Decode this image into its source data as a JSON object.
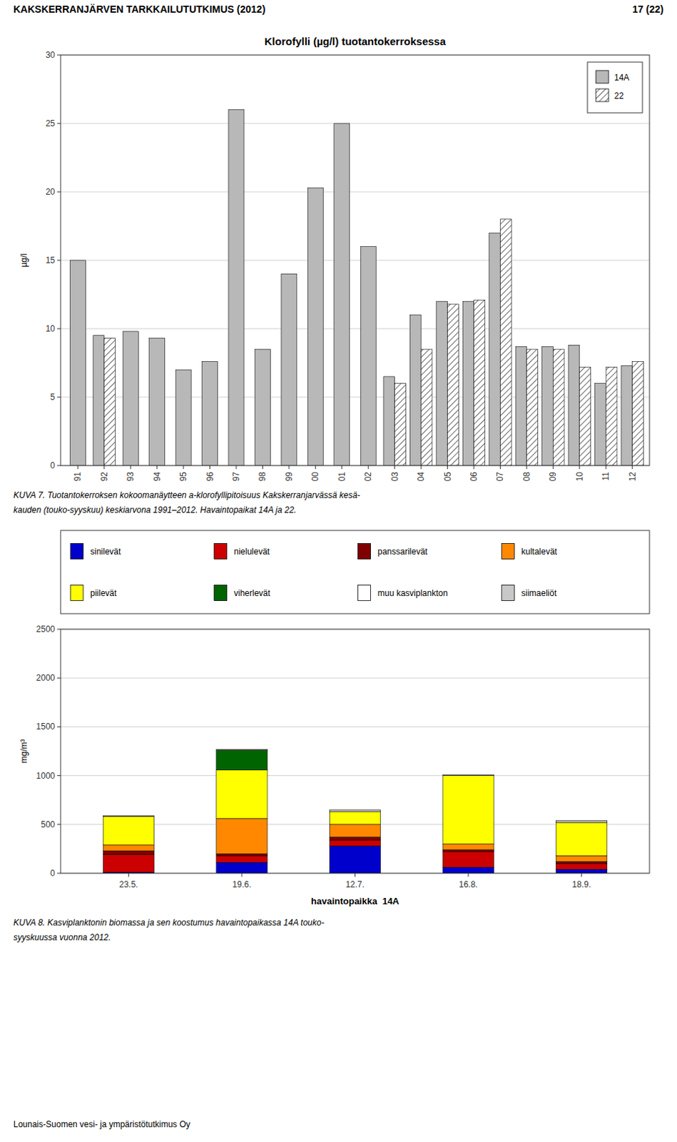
{
  "page_header": "KAKSKERRANJÄRVEN TARKKAILUTUTKIMUS (2012)",
  "page_number": "17 (22)",
  "footer": "Lounais-Suomen vesi- ja ympäristötutkimus Oy",
  "chart_data": [
    {
      "type": "bar",
      "title": "Klorofylli (µg/l) tuotantokerroksessa",
      "y_label": "µg/l",
      "categories": [
        "91",
        "92",
        "93",
        "94",
        "95",
        "96",
        "97",
        "98",
        "99",
        "00",
        "01",
        "02",
        "03",
        "04",
        "05",
        "06",
        "07",
        "08",
        "09",
        "10",
        "11",
        "12"
      ],
      "series": [
        {
          "name": "14A",
          "color": "#b8b8b8",
          "values": [
            15.0,
            9.5,
            9.8,
            9.3,
            7.0,
            7.6,
            26.0,
            8.5,
            14.0,
            20.3,
            25.0,
            16.0,
            6.5,
            11.0,
            12.0,
            12.0,
            17.0,
            8.7,
            8.7,
            8.8,
            6.0,
            7.3
          ]
        },
        {
          "name": "22",
          "color": "#ffffff",
          "values": [
            null,
            9.3,
            null,
            null,
            null,
            null,
            null,
            null,
            null,
            null,
            null,
            null,
            6.0,
            8.5,
            11.8,
            12.1,
            18.0,
            8.5,
            8.5,
            7.2,
            7.2,
            7.6
          ]
        }
      ],
      "ylim": [
        0,
        30
      ],
      "yticks": [
        0,
        5,
        10,
        15,
        20,
        25,
        30
      ],
      "grid": true,
      "legend": "upper-right",
      "caption": [
        "KUVA 7. Tuotantokerroksen kokoomanäytteen a-klorofyllipitoisuus Kakskerranjarvässä kesä-",
        "kauden (touko-syyskuu) keskiarvona 1991–2012. Havaintopaikat 14A ja 22."
      ]
    },
    {
      "type": "bar",
      "stacked": true,
      "x_label": "havaintopaikka  14A",
      "y_label": "mg/m³",
      "categories": [
        "23.5.",
        "19.6.",
        "12.7.",
        "16.8.",
        "18.9."
      ],
      "series": [
        {
          "name": "sinilevät",
          "color": "#0000cc",
          "values": [
            10,
            110,
            280,
            60,
            40
          ]
        },
        {
          "name": "nielulevät",
          "color": "#cc0000",
          "values": [
            180,
            70,
            60,
            160,
            60
          ]
        },
        {
          "name": "panssarilevät",
          "color": "#800000",
          "values": [
            40,
            20,
            30,
            20,
            20
          ]
        },
        {
          "name": "kultalevät",
          "color": "#ff8800",
          "values": [
            60,
            360,
            130,
            60,
            60
          ]
        },
        {
          "name": "piilevät",
          "color": "#ffff00",
          "values": [
            290,
            500,
            130,
            700,
            340
          ]
        },
        {
          "name": "viherlevät",
          "color": "#006400",
          "values": [
            0,
            200,
            0,
            0,
            0
          ]
        },
        {
          "name": "muu kasviplankton",
          "color": "#ffffff",
          "values": [
            0,
            0,
            0,
            0,
            0
          ]
        },
        {
          "name": "siimaeliöt",
          "color": "#c8c8c8",
          "values": [
            10,
            10,
            20,
            10,
            20
          ]
        }
      ],
      "ylim": [
        0,
        2500
      ],
      "yticks": [
        0,
        500,
        1000,
        1500,
        2000,
        2500
      ],
      "grid": true,
      "legend": "top",
      "caption": [
        "KUVA 8. Kasviplanktonin biomassa ja sen koostumus havaintopaikassa 14A touko-",
        "syyskuussa vuonna 2012."
      ]
    }
  ]
}
